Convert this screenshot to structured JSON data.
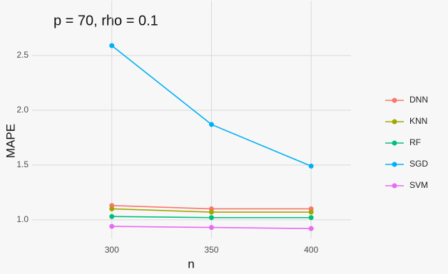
{
  "chart_data": {
    "type": "line",
    "title": "p = 70, rho = 0.1",
    "x_label": "n",
    "y_label": "MAPE",
    "x": [
      300,
      350,
      400
    ],
    "series": [
      {
        "name": "DNN",
        "color": "#F8766D",
        "values": [
          1.13,
          1.1,
          1.1
        ]
      },
      {
        "name": "KNN",
        "color": "#A3A500",
        "values": [
          1.1,
          1.07,
          1.07
        ]
      },
      {
        "name": "RF",
        "color": "#00BF7D",
        "values": [
          1.03,
          1.02,
          1.02
        ]
      },
      {
        "name": "SGD",
        "color": "#00B0F6",
        "values": [
          2.59,
          1.87,
          1.49
        ]
      },
      {
        "name": "SVM",
        "color": "#E76BF3",
        "values": [
          0.94,
          0.93,
          0.92
        ]
      }
    ],
    "xlim": [
      260,
      420
    ],
    "xticks": [
      300,
      350,
      400
    ],
    "ylim": [
      0.83,
      3.0
    ],
    "yticks": [
      {
        "value": 1.0,
        "label": "1.0"
      },
      {
        "value": 1.5,
        "label": "1.5"
      },
      {
        "value": 2.0,
        "label": "2.0"
      },
      {
        "value": 2.5,
        "label": "2.5"
      }
    ],
    "grid": true,
    "legend": "right"
  }
}
